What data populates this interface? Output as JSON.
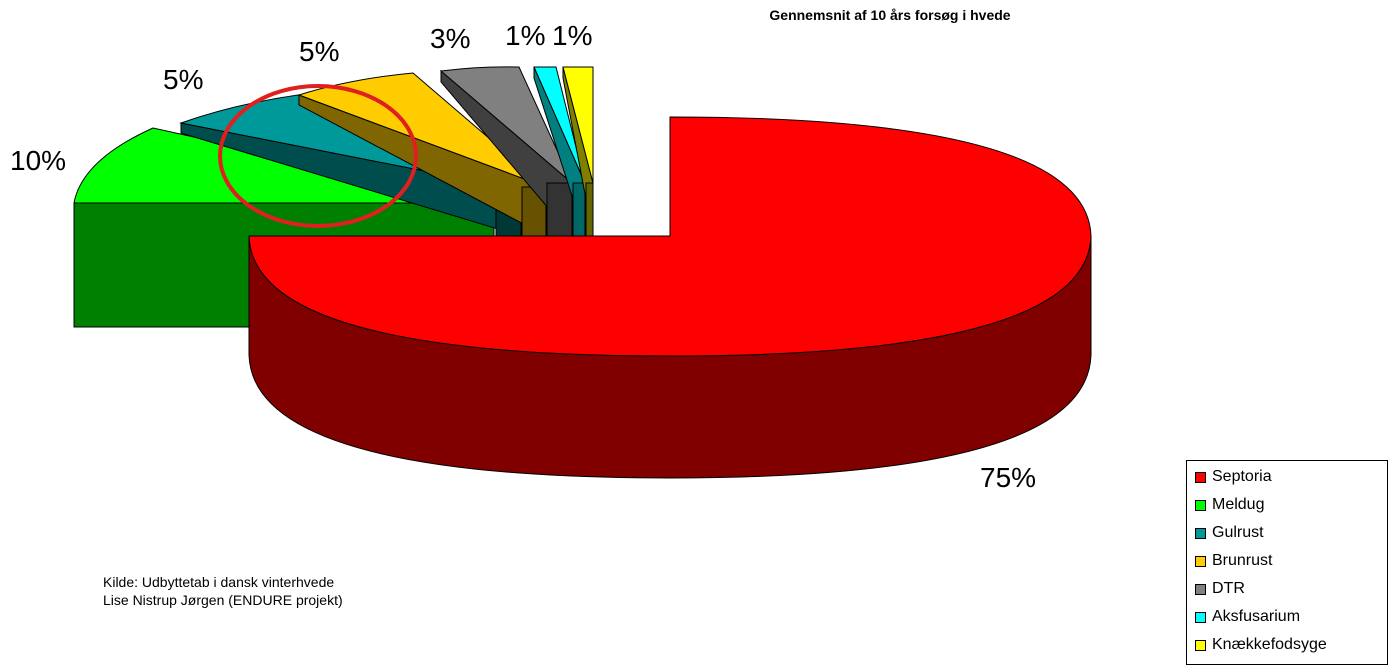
{
  "chart_data": {
    "type": "pie",
    "title": "Gennemsnit af 10 års forsøg i hvede",
    "exploded": true,
    "three_d": true,
    "slices": [
      {
        "name": "Septoria",
        "value": 75,
        "label": "75%",
        "color": "#ff0000",
        "side_color": "#800000"
      },
      {
        "name": "Meldug",
        "value": 10,
        "label": "10%",
        "color": "#00ff00",
        "side_color": "#008000"
      },
      {
        "name": "Gulrust",
        "value": 5,
        "label": "5%",
        "color": "#009999",
        "side_color": "#004d4d"
      },
      {
        "name": "Brunrust",
        "value": 5,
        "label": "5%",
        "color": "#ffcc00",
        "side_color": "#806600"
      },
      {
        "name": "DTR",
        "value": 3,
        "label": "3%",
        "color": "#808080",
        "side_color": "#404040"
      },
      {
        "name": "Aksfusarium",
        "value": 1,
        "label": "1%",
        "color": "#00ffff",
        "side_color": "#008080"
      },
      {
        "name": "Knækkefodsyge",
        "value": 1,
        "label": "1%",
        "color": "#ffff00",
        "side_color": "#808000"
      }
    ],
    "legend_position": "bottom-right",
    "annotation": {
      "shape": "ellipse",
      "color": "#e02020"
    }
  },
  "source": {
    "line1": "Kilde: Udbyttetab i dansk vinterhvede",
    "line2": "Lise Nistrup Jørgen (ENDURE projekt)"
  }
}
